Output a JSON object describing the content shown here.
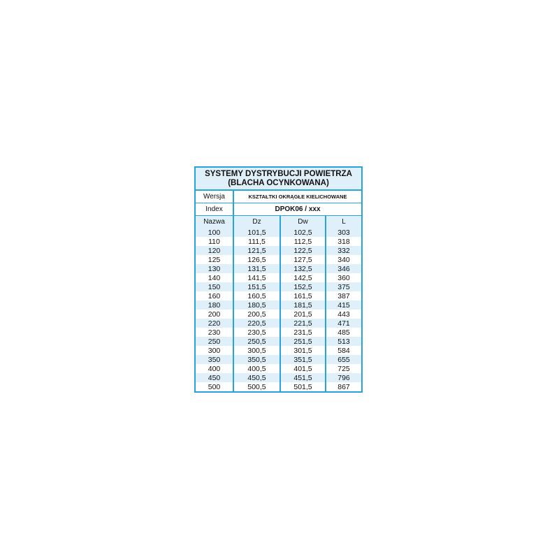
{
  "title_line1": "SYSTEMY DYSTRYBUCJI POWIETRZA",
  "title_line2": "(BLACHA OCYNKOWANA)",
  "wersja_label": "Wersja",
  "wersja_value": "KSZTAŁTKI OKRĄGŁE KIELICHOWANE",
  "index_label": "Index",
  "index_value": "DPOK06 / xxx",
  "columns": [
    "Nazwa",
    "Dz",
    "Dw",
    "L"
  ],
  "rows": [
    [
      "100",
      "101,5",
      "102,5",
      "303"
    ],
    [
      "110",
      "111,5",
      "112,5",
      "318"
    ],
    [
      "120",
      "121,5",
      "122,5",
      "332"
    ],
    [
      "125",
      "126,5",
      "127,5",
      "340"
    ],
    [
      "130",
      "131,5",
      "132,5",
      "346"
    ],
    [
      "140",
      "141,5",
      "142,5",
      "360"
    ],
    [
      "150",
      "151,5",
      "152,5",
      "375"
    ],
    [
      "160",
      "160,5",
      "161,5",
      "387"
    ],
    [
      "180",
      "180,5",
      "181,5",
      "415"
    ],
    [
      "200",
      "200,5",
      "201,5",
      "443"
    ],
    [
      "220",
      "220,5",
      "221,5",
      "471"
    ],
    [
      "230",
      "230,5",
      "231,5",
      "485"
    ],
    [
      "250",
      "250,5",
      "251,5",
      "513"
    ],
    [
      "300",
      "300,5",
      "301,5",
      "584"
    ],
    [
      "350",
      "350,5",
      "351,5",
      "655"
    ],
    [
      "400",
      "400,5",
      "401,5",
      "725"
    ],
    [
      "450",
      "450,5",
      "451,5",
      "796"
    ],
    [
      "500",
      "500,5",
      "501,5",
      "867"
    ]
  ],
  "colors": {
    "border": "#29a3de",
    "stripe": "#dff0fa"
  }
}
